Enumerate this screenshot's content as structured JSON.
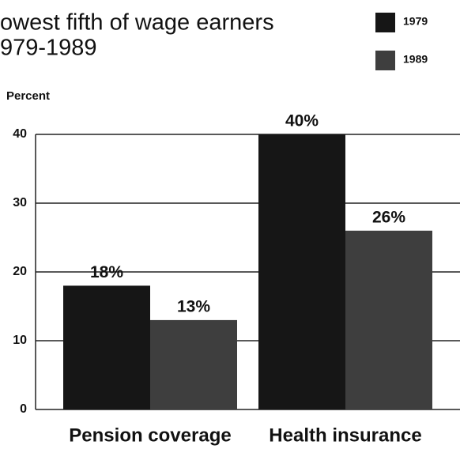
{
  "chart_data": {
    "type": "bar",
    "title": [
      "owest fifth of wage earners",
      "979-1989"
    ],
    "ylabel": "Percent",
    "categories": [
      "Pension coverage",
      "Health insurance"
    ],
    "series": [
      {
        "name": "1979",
        "color": "#161616",
        "values": [
          18,
          40
        ],
        "value_labels": [
          "18%",
          "40%"
        ]
      },
      {
        "name": "1989",
        "color": "#3e3e3e",
        "values": [
          13,
          26
        ],
        "value_labels": [
          "13%",
          "26%"
        ]
      }
    ],
    "ylim": [
      0,
      40
    ],
    "yticks": [
      0,
      10,
      20,
      30,
      40
    ],
    "grid": true,
    "legend": "top-right"
  }
}
